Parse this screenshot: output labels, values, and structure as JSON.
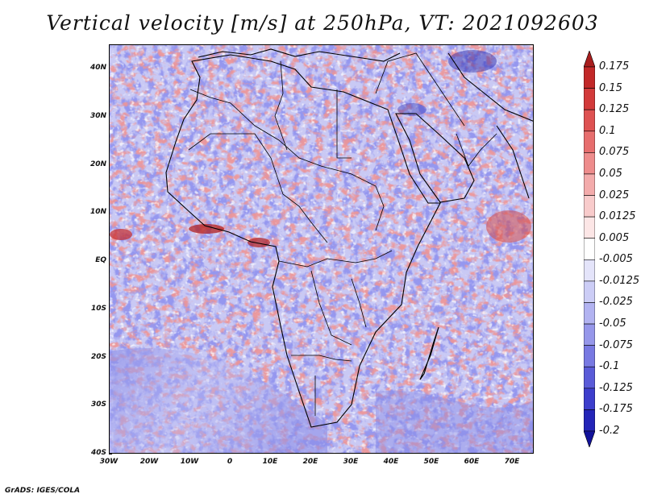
{
  "title": "Vertical velocity [m/s] at 250hPa, VT: 2021092603",
  "map": {
    "region": "Africa",
    "lat_labels": [
      "40N",
      "30N",
      "20N",
      "10N",
      "EQ",
      "10S",
      "20S",
      "30S",
      "40S"
    ],
    "lon_labels": [
      "30W",
      "20W",
      "10W",
      "0",
      "10E",
      "20E",
      "30E",
      "40E",
      "50E",
      "60E",
      "70E"
    ]
  },
  "colorbar": {
    "levels": [
      "0.175",
      "0.15",
      "0.125",
      "0.1",
      "0.075",
      "0.05",
      "0.025",
      "0.0125",
      "0.005",
      "-0.005",
      "-0.0125",
      "-0.025",
      "-0.05",
      "-0.075",
      "-0.1",
      "-0.125",
      "-0.175",
      "-0.2"
    ],
    "colors": [
      "#a81e1e",
      "#c22828",
      "#d23a3a",
      "#de5252",
      "#e76e6e",
      "#ee8c8c",
      "#f3abab",
      "#f8cbcb",
      "#fce6e6",
      "#ffffff",
      "#e4e4fa",
      "#cccdf6",
      "#b2b3f1",
      "#9697ea",
      "#7879e2",
      "#5a5bd8",
      "#3d3ecc",
      "#2425b8",
      "#12129a"
    ]
  },
  "credit": "GrADS: IGES/COLA"
}
